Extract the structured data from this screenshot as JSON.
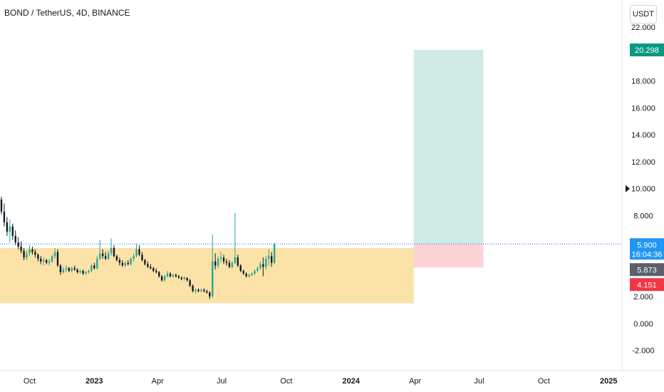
{
  "header": {
    "title": "BOND / TetherUS, 4D, BINANCE"
  },
  "price_axis": {
    "currency_button": "USDT"
  },
  "colors": {
    "up": "#26a69a",
    "down": "#131722",
    "range_zone": "#fbe3a8",
    "target_zone": "#d0ebe6",
    "stop_zone": "#fbd3d6",
    "last_price_line": "#2962ff",
    "target_badge": "#089981",
    "current_badge": "#2196f3",
    "prev_badge": "#5d606b",
    "stop_badge": "#f23645"
  },
  "chart_data": {
    "type": "candlestick",
    "title": "BOND / TetherUS, 4D, BINANCE",
    "ylim": [
      -3.5,
      24
    ],
    "yticks": [
      "22.000",
      "18.000",
      "16.000",
      "14.000",
      "12.000",
      "10.000",
      "8.000",
      "2.000",
      "0.000",
      "-2.000"
    ],
    "ytick_values": [
      22,
      18,
      16,
      14,
      12,
      10,
      8,
      2,
      0,
      -2
    ],
    "xticks": [
      {
        "label": "Oct",
        "date": "2022-10-01"
      },
      {
        "label": "2023",
        "date": "2023-01-01"
      },
      {
        "label": "Apr",
        "date": "2023-04-01"
      },
      {
        "label": "Jul",
        "date": "2023-07-01"
      },
      {
        "label": "Oct",
        "date": "2023-10-01"
      },
      {
        "label": "2024",
        "date": "2024-01-01"
      },
      {
        "label": "Apr",
        "date": "2024-04-01"
      },
      {
        "label": "Jul",
        "date": "2024-07-01"
      },
      {
        "label": "Oct",
        "date": "2024-10-01"
      },
      {
        "label": "2025",
        "date": "2025-01-01"
      }
    ],
    "xlim": [
      "2022-08-20",
      "2025-01-20"
    ],
    "price_labels": [
      {
        "label": "20.298",
        "value": 20.298,
        "kind": "target"
      },
      {
        "label": "5.900",
        "value": 5.9,
        "kind": "current",
        "sub": "16:04:36"
      },
      {
        "label": "5.873",
        "value": 5.873,
        "kind": "prev"
      },
      {
        "label": "4.151",
        "value": 4.151,
        "kind": "stop"
      }
    ],
    "last_price": 5.9,
    "zones": [
      {
        "kind": "range",
        "x0": "2022-08-20",
        "x1": "2024-03-30",
        "y0": 1.5,
        "y1": 5.6
      },
      {
        "kind": "target",
        "x0": "2024-03-30",
        "x1": "2024-07-07",
        "y0": 5.9,
        "y1": 20.298
      },
      {
        "kind": "stop",
        "x0": "2024-03-30",
        "x1": "2024-07-07",
        "y0": 4.151,
        "y1": 5.9
      }
    ],
    "candles": {
      "start": "2022-08-20",
      "interval_days": 4,
      "ohlc": [
        [
          9.2,
          9.4,
          8.1,
          8.3
        ],
        [
          8.3,
          8.9,
          7.2,
          7.5
        ],
        [
          7.5,
          7.9,
          6.5,
          6.8
        ],
        [
          6.8,
          7.7,
          6.0,
          7.2
        ],
        [
          7.2,
          7.4,
          6.2,
          6.5
        ],
        [
          6.5,
          6.9,
          5.8,
          6.0
        ],
        [
          6.0,
          6.4,
          5.5,
          5.7
        ],
        [
          5.7,
          6.1,
          5.2,
          5.4
        ],
        [
          5.4,
          5.6,
          4.7,
          4.9
        ],
        [
          4.9,
          5.4,
          4.7,
          5.2
        ],
        [
          5.2,
          5.8,
          5.0,
          5.5
        ],
        [
          5.5,
          5.7,
          5.1,
          5.3
        ],
        [
          5.3,
          5.5,
          4.9,
          5.1
        ],
        [
          5.1,
          5.2,
          4.6,
          4.8
        ],
        [
          4.8,
          5.0,
          4.4,
          4.6
        ],
        [
          4.6,
          4.9,
          4.3,
          4.7
        ],
        [
          4.7,
          4.8,
          4.4,
          4.5
        ],
        [
          4.5,
          4.8,
          4.3,
          4.6
        ],
        [
          4.6,
          5.1,
          4.5,
          5.0
        ],
        [
          5.0,
          5.6,
          4.8,
          5.3
        ],
        [
          5.3,
          5.5,
          4.2,
          4.3
        ],
        [
          4.3,
          4.4,
          3.6,
          3.8
        ],
        [
          3.8,
          4.2,
          3.7,
          4.0
        ],
        [
          4.0,
          4.3,
          3.8,
          4.1
        ],
        [
          4.1,
          4.2,
          3.8,
          3.9
        ],
        [
          3.9,
          4.2,
          3.8,
          4.1
        ],
        [
          4.1,
          4.3,
          3.9,
          4.0
        ],
        [
          4.0,
          4.1,
          3.7,
          3.8
        ],
        [
          3.8,
          4.0,
          3.7,
          3.9
        ],
        [
          3.9,
          4.0,
          3.6,
          3.7
        ],
        [
          3.7,
          3.9,
          3.6,
          3.8
        ],
        [
          3.8,
          4.0,
          3.7,
          3.9
        ],
        [
          3.9,
          4.4,
          3.8,
          4.3
        ],
        [
          4.3,
          4.5,
          4.0,
          4.1
        ],
        [
          4.1,
          5.0,
          4.0,
          4.8
        ],
        [
          4.8,
          6.2,
          4.7,
          5.2
        ],
        [
          5.2,
          5.5,
          4.8,
          5.0
        ],
        [
          5.0,
          5.3,
          4.7,
          4.8
        ],
        [
          4.8,
          5.4,
          4.7,
          5.2
        ],
        [
          5.2,
          6.3,
          5.0,
          5.6
        ],
        [
          5.6,
          5.8,
          4.9,
          5.0
        ],
        [
          5.0,
          5.1,
          4.6,
          4.7
        ],
        [
          4.7,
          4.9,
          4.3,
          4.5
        ],
        [
          4.5,
          4.7,
          4.2,
          4.3
        ],
        [
          4.3,
          4.6,
          4.2,
          4.5
        ],
        [
          4.5,
          4.7,
          4.3,
          4.4
        ],
        [
          4.4,
          4.9,
          4.3,
          4.8
        ],
        [
          4.8,
          5.2,
          4.6,
          5.0
        ],
        [
          5.0,
          5.9,
          4.9,
          5.5
        ],
        [
          5.5,
          5.8,
          5.0,
          5.1
        ],
        [
          5.1,
          5.3,
          4.6,
          4.7
        ],
        [
          4.7,
          4.8,
          4.3,
          4.4
        ],
        [
          4.4,
          4.6,
          4.1,
          4.2
        ],
        [
          4.2,
          4.4,
          4.0,
          4.1
        ],
        [
          4.1,
          4.2,
          3.8,
          3.9
        ],
        [
          3.9,
          4.1,
          3.7,
          3.8
        ],
        [
          3.8,
          3.9,
          3.4,
          3.5
        ],
        [
          3.5,
          3.6,
          3.1,
          3.2
        ],
        [
          3.2,
          3.6,
          3.1,
          3.5
        ],
        [
          3.5,
          3.9,
          3.4,
          3.7
        ],
        [
          3.7,
          3.8,
          3.4,
          3.5
        ],
        [
          3.5,
          3.7,
          3.4,
          3.6
        ],
        [
          3.6,
          3.7,
          3.4,
          3.5
        ],
        [
          3.5,
          3.6,
          3.3,
          3.4
        ],
        [
          3.4,
          3.5,
          3.2,
          3.3
        ],
        [
          3.3,
          3.5,
          3.2,
          3.4
        ],
        [
          3.4,
          3.4,
          3.1,
          3.2
        ],
        [
          3.2,
          3.3,
          2.7,
          2.8
        ],
        [
          2.8,
          2.9,
          2.3,
          2.4
        ],
        [
          2.4,
          2.6,
          2.2,
          2.5
        ],
        [
          2.5,
          2.6,
          2.3,
          2.4
        ],
        [
          2.4,
          2.6,
          2.3,
          2.5
        ],
        [
          2.5,
          2.6,
          2.3,
          2.4
        ],
        [
          2.4,
          2.5,
          2.2,
          2.3
        ],
        [
          2.3,
          2.4,
          1.8,
          2.0
        ],
        [
          2.0,
          6.6,
          1.9,
          4.6
        ],
        [
          4.6,
          5.2,
          4.0,
          4.3
        ],
        [
          4.3,
          5.0,
          4.1,
          4.8
        ],
        [
          4.8,
          5.3,
          4.5,
          4.9
        ],
        [
          4.9,
          5.1,
          4.4,
          4.6
        ],
        [
          4.6,
          4.8,
          4.3,
          4.5
        ],
        [
          4.5,
          4.7,
          4.1,
          4.2
        ],
        [
          4.2,
          4.6,
          4.1,
          4.5
        ],
        [
          4.5,
          8.2,
          4.4,
          4.9
        ],
        [
          4.9,
          5.1,
          4.2,
          4.3
        ],
        [
          4.3,
          4.4,
          3.8,
          3.9
        ],
        [
          3.9,
          4.0,
          3.6,
          3.7
        ],
        [
          3.7,
          3.8,
          3.4,
          3.5
        ],
        [
          3.5,
          3.7,
          3.4,
          3.6
        ],
        [
          3.6,
          3.8,
          3.5,
          3.7
        ],
        [
          3.7,
          4.0,
          3.6,
          3.9
        ],
        [
          3.9,
          4.2,
          3.8,
          4.1
        ],
        [
          4.1,
          4.6,
          4.0,
          4.4
        ],
        [
          4.4,
          4.9,
          3.5,
          4.2
        ],
        [
          4.2,
          5.0,
          4.0,
          4.8
        ],
        [
          4.8,
          5.5,
          4.3,
          5.0
        ],
        [
          5.0,
          5.3,
          4.2,
          4.5
        ],
        [
          4.5,
          6.0,
          4.4,
          5.9
        ]
      ]
    }
  }
}
